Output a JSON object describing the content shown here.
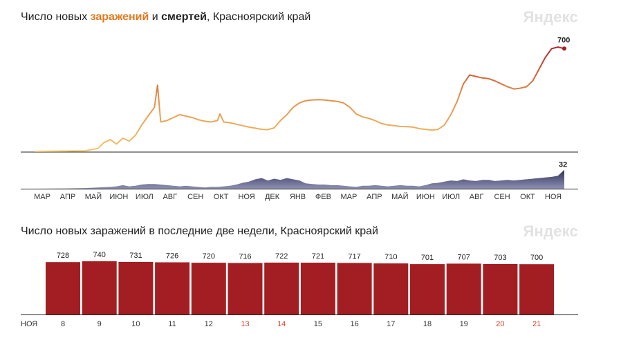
{
  "header1": {
    "prefix": "Число новых ",
    "infections": "заражений",
    "mid": " и ",
    "deaths": "смертей",
    "suffix": ", Красноярский край",
    "logo": "Яндекс"
  },
  "header2": {
    "title": "Число новых заражений в последние две недели, Красноярский край",
    "logo": "Яндекс"
  },
  "colors": {
    "infections_low": "#f2c56b",
    "infections_high": "#b3262a",
    "deaths_fill": "#3e3f66",
    "bar": "#a31e22",
    "weekend": "#d9452c"
  },
  "chart_data": [
    {
      "type": "line",
      "name": "infections-line",
      "series_name": "заражений",
      "x_labels": [
        "МАР",
        "АПР",
        "МАЙ",
        "ИЮН",
        "ИЮЛ",
        "АВГ",
        "СЕН",
        "ОКТ",
        "НОЯ",
        "ДЕК",
        "ЯНВ",
        "ФЕВ",
        "МАР",
        "АПР",
        "МАЙ",
        "ИЮН",
        "ИЮЛ",
        "АВГ",
        "СЕН",
        "ОКТ",
        "НОЯ"
      ],
      "end_label": "700",
      "ylim": [
        0,
        720
      ],
      "points": [
        [
          0,
          0
        ],
        [
          5,
          2
        ],
        [
          8,
          4
        ],
        [
          10,
          20
        ],
        [
          11,
          60
        ],
        [
          12,
          80
        ],
        [
          13,
          50
        ],
        [
          14,
          90
        ],
        [
          15,
          70
        ],
        [
          16,
          110
        ],
        [
          17,
          180
        ],
        [
          18,
          240
        ],
        [
          19,
          300
        ],
        [
          19.5,
          450
        ],
        [
          20,
          200
        ],
        [
          21,
          210
        ],
        [
          22,
          230
        ],
        [
          23,
          250
        ],
        [
          24,
          240
        ],
        [
          25,
          230
        ],
        [
          26,
          215
        ],
        [
          27,
          205
        ],
        [
          28,
          200
        ],
        [
          29,
          210
        ],
        [
          29.4,
          255
        ],
        [
          30,
          200
        ],
        [
          31,
          195
        ],
        [
          32,
          185
        ],
        [
          33,
          175
        ],
        [
          34,
          165
        ],
        [
          35,
          158
        ],
        [
          36,
          150
        ],
        [
          37,
          148
        ],
        [
          38,
          160
        ],
        [
          39,
          210
        ],
        [
          40,
          250
        ],
        [
          41,
          300
        ],
        [
          42,
          330
        ],
        [
          43,
          345
        ],
        [
          44,
          350
        ],
        [
          45,
          352
        ],
        [
          46,
          350
        ],
        [
          47,
          345
        ],
        [
          48,
          340
        ],
        [
          49,
          330
        ],
        [
          50,
          300
        ],
        [
          51,
          255
        ],
        [
          52,
          235
        ],
        [
          53,
          225
        ],
        [
          54,
          210
        ],
        [
          55,
          190
        ],
        [
          56,
          180
        ],
        [
          57,
          175
        ],
        [
          58,
          170
        ],
        [
          59,
          168
        ],
        [
          60,
          165
        ],
        [
          61,
          155
        ],
        [
          62,
          150
        ],
        [
          63,
          145
        ],
        [
          64,
          150
        ],
        [
          65,
          180
        ],
        [
          66,
          250
        ],
        [
          67,
          340
        ],
        [
          68,
          460
        ],
        [
          69,
          520
        ],
        [
          70,
          510
        ],
        [
          71,
          500
        ],
        [
          72,
          495
        ],
        [
          73,
          480
        ],
        [
          74,
          460
        ],
        [
          75,
          440
        ],
        [
          76,
          425
        ],
        [
          77,
          430
        ],
        [
          78,
          440
        ],
        [
          79,
          480
        ],
        [
          80,
          560
        ],
        [
          81,
          640
        ],
        [
          82,
          700
        ],
        [
          83,
          710
        ],
        [
          84,
          700
        ]
      ]
    },
    {
      "type": "area",
      "name": "deaths-area",
      "series_name": "смертей",
      "end_label": "32",
      "ylim": [
        0,
        34
      ],
      "points": [
        [
          0,
          0
        ],
        [
          5,
          0.5
        ],
        [
          8,
          1
        ],
        [
          10,
          2
        ],
        [
          12,
          3
        ],
        [
          13,
          4
        ],
        [
          14,
          6
        ],
        [
          15,
          4
        ],
        [
          16,
          5
        ],
        [
          17,
          7
        ],
        [
          18,
          8
        ],
        [
          19,
          8
        ],
        [
          20,
          7
        ],
        [
          21,
          6
        ],
        [
          22,
          5
        ],
        [
          23,
          4
        ],
        [
          24,
          5
        ],
        [
          25,
          4
        ],
        [
          26,
          3
        ],
        [
          27,
          2
        ],
        [
          28,
          3
        ],
        [
          29,
          3
        ],
        [
          30,
          4
        ],
        [
          31,
          5
        ],
        [
          32,
          7
        ],
        [
          33,
          10
        ],
        [
          34,
          12
        ],
        [
          35,
          16
        ],
        [
          36,
          18
        ],
        [
          37,
          14
        ],
        [
          38,
          17
        ],
        [
          39,
          15
        ],
        [
          40,
          18
        ],
        [
          41,
          16
        ],
        [
          42,
          14
        ],
        [
          43,
          9
        ],
        [
          44,
          8
        ],
        [
          45,
          7
        ],
        [
          46,
          7
        ],
        [
          47,
          6
        ],
        [
          48,
          6
        ],
        [
          49,
          5
        ],
        [
          50,
          4
        ],
        [
          51,
          3
        ],
        [
          52,
          5
        ],
        [
          53,
          5
        ],
        [
          54,
          6
        ],
        [
          55,
          5
        ],
        [
          56,
          4
        ],
        [
          57,
          5
        ],
        [
          58,
          6
        ],
        [
          59,
          5
        ],
        [
          60,
          5
        ],
        [
          61,
          4
        ],
        [
          62,
          6
        ],
        [
          63,
          9
        ],
        [
          64,
          10
        ],
        [
          65,
          12
        ],
        [
          66,
          14
        ],
        [
          67,
          13
        ],
        [
          68,
          16
        ],
        [
          69,
          14
        ],
        [
          70,
          13
        ],
        [
          71,
          15
        ],
        [
          72,
          15
        ],
        [
          73,
          13
        ],
        [
          74,
          14
        ],
        [
          75,
          15
        ],
        [
          76,
          14
        ],
        [
          77,
          15
        ],
        [
          78,
          16
        ],
        [
          79,
          17
        ],
        [
          80,
          18
        ],
        [
          81,
          19
        ],
        [
          82,
          20
        ],
        [
          83,
          22
        ],
        [
          84,
          32
        ]
      ]
    },
    {
      "type": "bar",
      "name": "two-weeks-bars",
      "month_label": "НОЯ",
      "categories": [
        "8",
        "9",
        "10",
        "11",
        "12",
        "13",
        "14",
        "15",
        "16",
        "17",
        "18",
        "19",
        "20",
        "21"
      ],
      "weekend": [
        false,
        false,
        false,
        false,
        false,
        true,
        true,
        false,
        false,
        false,
        false,
        false,
        true,
        true
      ],
      "values": [
        728,
        740,
        731,
        726,
        720,
        716,
        722,
        721,
        717,
        710,
        701,
        707,
        703,
        700
      ],
      "ylim": [
        0,
        740
      ]
    }
  ]
}
